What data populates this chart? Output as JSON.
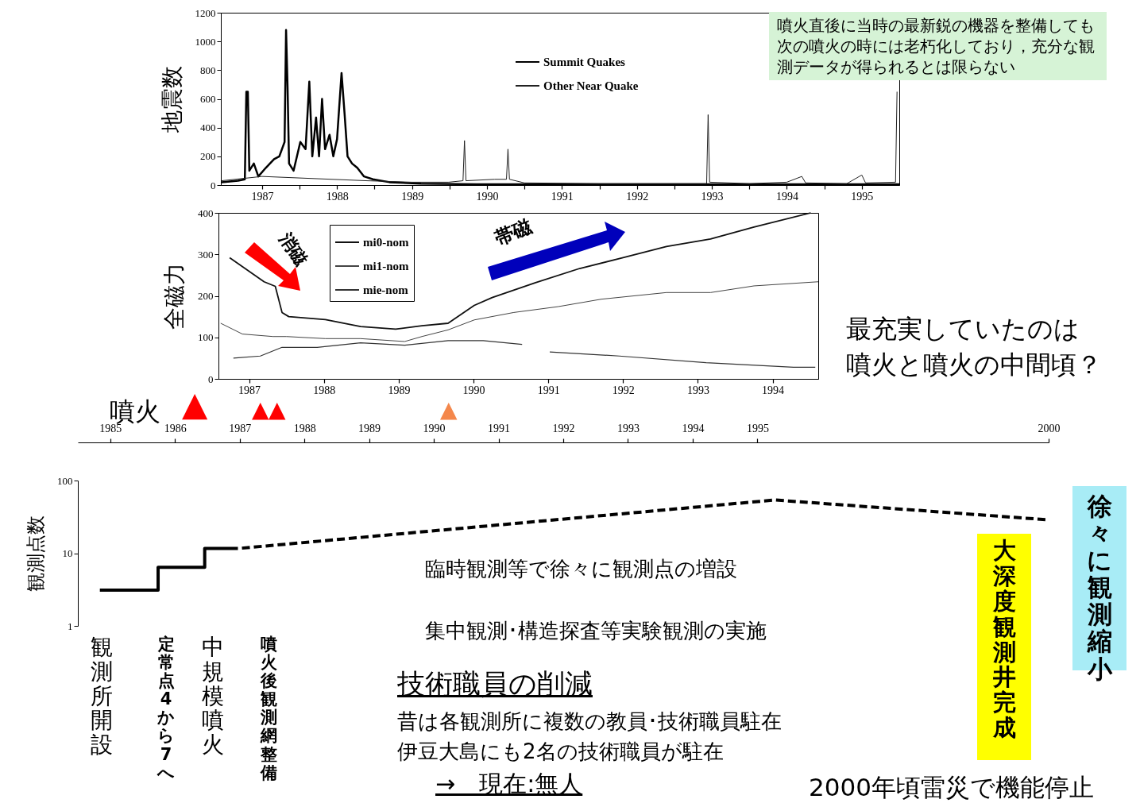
{
  "chart_data": [
    {
      "type": "line",
      "ylabel": "地震数",
      "xlim": [
        1986.95,
        1996.0
      ],
      "xticks": [
        {
          "value": 1987.5,
          "label": "1987"
        },
        {
          "value": 1988,
          "label": null
        },
        {
          "value": 1988.5,
          "label": "1988"
        },
        {
          "value": 1989,
          "label": null
        },
        {
          "value": 1989.5,
          "label": "1989"
        },
        {
          "value": 1990,
          "label": null
        },
        {
          "value": 1990.5,
          "label": "1990"
        },
        {
          "value": 1991,
          "label": null
        },
        {
          "value": 1991.5,
          "label": "1991"
        },
        {
          "value": 1992,
          "label": null
        },
        {
          "value": 1992.5,
          "label": "1992"
        },
        {
          "value": 1993,
          "label": null
        },
        {
          "value": 1993.5,
          "label": "1993"
        },
        {
          "value": 1994,
          "label": null
        },
        {
          "value": 1994.5,
          "label": "1994"
        },
        {
          "value": 1995,
          "label": null
        },
        {
          "value": 1995.5,
          "label": "1995"
        }
      ],
      "ylim": [
        0,
        1200
      ],
      "yticks": [
        0,
        200,
        400,
        600,
        800,
        1000,
        1200
      ],
      "legend": "top right",
      "annotations": [
        "噴火直後に当時の最新鋭の機器を整備しても次の噴火の時には老朽化しており，充分な観測データが得られるとは限らない"
      ],
      "series": [
        {
          "name": "Summit Quakes",
          "color": "#000000",
          "x": [
            1986.96,
            1987.18,
            1987.27,
            1987.29,
            1987.31,
            1987.33,
            1987.39,
            1987.45,
            1987.55,
            1987.66,
            1987.73,
            1987.8,
            1987.82,
            1987.84,
            1987.86,
            1987.92,
            1988.01,
            1988.08,
            1988.13,
            1988.17,
            1988.22,
            1988.26,
            1988.3,
            1988.34,
            1988.4,
            1988.45,
            1988.5,
            1988.56,
            1988.6,
            1988.64,
            1988.7,
            1988.77,
            1988.86,
            1988.98,
            1989.2,
            1989.62,
            1990.36,
            1991.42,
            1996.0
          ],
          "values": [
            20,
            30,
            40,
            650,
            650,
            100,
            150,
            60,
            120,
            180,
            200,
            300,
            1080,
            680,
            150,
            100,
            300,
            250,
            720,
            200,
            470,
            200,
            600,
            250,
            350,
            200,
            320,
            780,
            500,
            200,
            150,
            120,
            60,
            40,
            20,
            10,
            5,
            5,
            5
          ]
        },
        {
          "name": "Other Near Quake",
          "color": "#222222",
          "x": [
            1986.96,
            1987.5,
            1988.9,
            1989.5,
            1989.99,
            1990.18,
            1990.2,
            1990.22,
            1990.6,
            1990.76,
            1990.78,
            1990.8,
            1991.0,
            1992.0,
            1993.0,
            1993.43,
            1993.45,
            1993.47,
            1994.0,
            1994.5,
            1994.7,
            1994.75,
            1995.3,
            1995.5,
            1995.55,
            1995.95,
            1995.97
          ],
          "values": [
            30,
            60,
            30,
            20,
            20,
            30,
            310,
            30,
            40,
            40,
            250,
            40,
            15,
            10,
            10,
            10,
            490,
            20,
            10,
            20,
            60,
            15,
            10,
            70,
            15,
            20,
            650
          ]
        }
      ]
    },
    {
      "type": "line",
      "ylabel": "全磁力",
      "xlim": [
        1986.59,
        1994.61
      ],
      "xticks": [
        1987,
        1988,
        1989,
        1990,
        1991,
        1992,
        1993,
        1994
      ],
      "ylim": [
        0,
        400
      ],
      "yticks": [
        0,
        100,
        200,
        300,
        400
      ],
      "legend": "top left",
      "annotations": [
        "消磁",
        "帯磁",
        "最充実していたのは噴火と噴火の中間頃？"
      ],
      "series": [
        {
          "name": "mi0-nom",
          "color": "#111111",
          "x": [
            1986.74,
            1987.2,
            1987.35,
            1987.44,
            1987.53,
            1988.02,
            1988.49,
            1988.96,
            1989.31,
            1989.66,
            1990.01,
            1990.25,
            1990.83,
            1991.42,
            1992.0,
            1992.58,
            1993.17,
            1993.75,
            1994.51
          ],
          "values": [
            292,
            234,
            223,
            160,
            150,
            143,
            126,
            120,
            128,
            134,
            177,
            196,
            232,
            266,
            292,
            319,
            337,
            366,
            400
          ]
        },
        {
          "name": "mi1-nom",
          "color": "#444444",
          "x": [
            1986.62,
            1986.91,
            1987.32,
            1987.5,
            1988.02,
            1988.49,
            1989.08,
            1989.31,
            1989.66,
            1990.01,
            1990.54,
            1991.13,
            1991.71,
            1992.58,
            1993.17,
            1993.75,
            1994.61
          ],
          "values": [
            134,
            108,
            102,
            102,
            97,
            97,
            90,
            102,
            118,
            142,
            160,
            174,
            192,
            208,
            208,
            224,
            234
          ]
        },
        {
          "name": "mie-nom",
          "color": "#333333",
          "x": [
            1986.79,
            1987.15,
            1987.44,
            1987.91,
            1988.49,
            1989.08,
            1989.66,
            1990.13,
            1990.65,
            1990.8,
            1991.02,
            1991.95,
            1993.11,
            1994.28,
            1994.57
          ],
          "values": [
            50,
            55,
            76,
            76,
            87,
            81,
            92,
            92,
            83,
            null,
            65,
            55,
            39,
            28,
            28
          ]
        }
      ]
    },
    {
      "type": "line",
      "ylabel": "観測点数",
      "log": true,
      "ylim": [
        1,
        100
      ],
      "yticks": [
        1,
        10,
        100
      ],
      "xlim": [
        1985,
        2000
      ],
      "xticks": [
        {
          "value": 1985.5,
          "label": "1985"
        },
        {
          "value": 1986.5,
          "label": "1986"
        },
        {
          "value": 1987.5,
          "label": "1987"
        },
        {
          "value": 1988.5,
          "label": "1988"
        },
        {
          "value": 1989.5,
          "label": "1989"
        },
        {
          "value": 1990.5,
          "label": "1990"
        },
        {
          "value": 1991.5,
          "label": "1991"
        },
        {
          "value": 1992.5,
          "label": "1992"
        },
        {
          "value": 1993.5,
          "label": "1993"
        },
        {
          "value": 1994.5,
          "label": "1994"
        },
        {
          "value": 1995.5,
          "label": "1995"
        },
        2000
      ],
      "annotations": [
        "臨時観測等で徐々に観測点の増設",
        "集中観測･構造探査等実験観測の実施",
        "技術職員の削減",
        "昔は各観測所に複数の教員･技術職員駐在",
        "伊豆大島にも2名の技術職員が駐在",
        "→　現在:無人",
        "2000年頃雷災で機能停止",
        "観測所開設",
        "定常点4から7へ",
        "中規模噴火",
        "噴火後観測網整備",
        "大深度観測井完成",
        "徐々に観測縮小",
        "噴火",
        "▲",
        "▲",
        "▲",
        "▲"
      ],
      "series": [
        {
          "type": "step",
          "color": "#000000",
          "x": [
            1985.34,
            1986.24,
            1986.96,
            1987.47
          ],
          "values": [
            3.1,
            6.4,
            11.6,
            11.6
          ]
        },
        {
          "line_style": "dashed",
          "color": "#000000",
          "x": [
            1987.47,
            1995.77,
            1999.95
          ],
          "values": [
            11.6,
            54,
            29
          ]
        }
      ]
    }
  ]
}
